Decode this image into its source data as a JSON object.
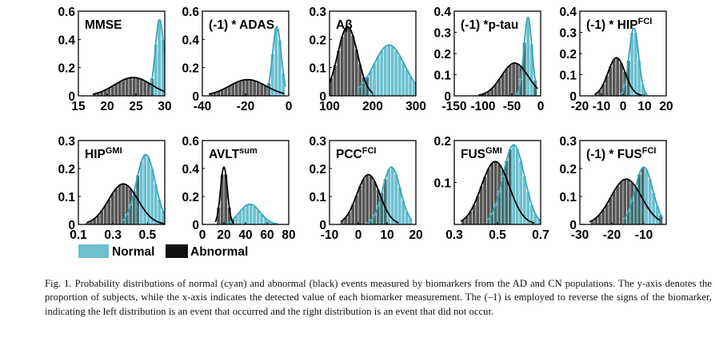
{
  "colors": {
    "normal": "#6cc0d0",
    "normal_dark": "#3aa6bb",
    "abnormal": "#555555",
    "overlap": "#3d6f73",
    "axis": "#000000"
  },
  "legend": {
    "normal": "Normal",
    "abnormal": "Abnormal"
  },
  "caption": "Fig. 1. Probability distributions of normal (cyan) and abnormal (black) events measured by biomarkers from the AD and CN populations. The y-axis denotes the proportion of subjects, while the x-axis indicates the detected value of each biomarker measurement. The (–1) is employed to reverse the signs of the biomarker, indicating the left distribution is an event that occurred and the right distribution is an event that did not occur.",
  "chart_data": [
    {
      "type": "area",
      "title": "MMSE",
      "xlim": [
        15,
        30
      ],
      "ylim": [
        0,
        0.6
      ],
      "xticks": [
        "15",
        "20",
        "25",
        "30"
      ],
      "xtick_values": [
        15,
        20,
        25,
        30
      ],
      "yticks": [
        "0",
        "0.2",
        "0.4",
        "0.6"
      ],
      "ytick_values": [
        0,
        0.2,
        0.4,
        0.6
      ],
      "series": [
        {
          "name": "Normal",
          "mean": 29.1,
          "sd": 0.75,
          "range": [
            27.5,
            30.0
          ],
          "peak": 0.54
        },
        {
          "name": "Abnormal",
          "mean": 24.5,
          "sd": 3.2,
          "range": [
            17.5,
            30.0
          ],
          "peak": 0.13
        }
      ]
    },
    {
      "type": "area",
      "title": "(-1) * ADAS",
      "xlim": [
        -40,
        0
      ],
      "ylim": [
        0,
        0.6
      ],
      "xticks": [
        "-40",
        "-20",
        "0"
      ],
      "xtick_values": [
        -40,
        -20,
        0
      ],
      "yticks": [
        "0",
        "0.2",
        "0.4",
        "0.6"
      ],
      "ytick_values": [
        0,
        0.2,
        0.4,
        0.6
      ],
      "series": [
        {
          "name": "Normal",
          "mean": -5.5,
          "sd": 2.0,
          "range": [
            -10.0,
            -1.5
          ],
          "peak": 0.49
        },
        {
          "name": "Abnormal",
          "mean": -19.0,
          "sd": 8.5,
          "range": [
            -37.0,
            -2.0
          ],
          "peak": 0.115
        }
      ]
    },
    {
      "type": "area",
      "title": "Aβ",
      "xlim": [
        100,
        300
      ],
      "ylim": [
        0,
        0.3
      ],
      "xticks": [
        "100",
        "200",
        "300"
      ],
      "xtick_values": [
        100,
        200,
        300
      ],
      "yticks": [
        "0",
        "0.1",
        "0.2",
        "0.3"
      ],
      "ytick_values": [
        0,
        0.1,
        0.2,
        0.3
      ],
      "series": [
        {
          "name": "Normal",
          "mean": 238,
          "sd": 36,
          "range": [
            170,
            300
          ],
          "peak": 0.18
        },
        {
          "name": "Abnormal",
          "mean": 142,
          "sd": 23,
          "range": [
            100,
            200
          ],
          "peak": 0.245
        }
      ]
    },
    {
      "type": "area",
      "title": "(-1) *p-tau",
      "xlim": [
        -150,
        0
      ],
      "ylim": [
        0,
        0.4
      ],
      "xticks": [
        "-150",
        "-100",
        "-50",
        "0"
      ],
      "xtick_values": [
        -150,
        -100,
        -50,
        0
      ],
      "yticks": [
        "0",
        "0.1",
        "0.2",
        "0.3",
        "0.4"
      ],
      "ytick_values": [
        0,
        0.1,
        0.2,
        0.3,
        0.4
      ],
      "series": [
        {
          "name": "Normal",
          "mean": -22,
          "sd": 7,
          "range": [
            -50,
            -8
          ],
          "peak": 0.37
        },
        {
          "name": "Abnormal",
          "mean": -45,
          "sd": 23,
          "range": [
            -108,
            -5
          ],
          "peak": 0.155
        }
      ]
    },
    {
      "type": "area",
      "title": "(-1) * HIP",
      "title_sup": "FCI",
      "xlim": [
        -20,
        20
      ],
      "ylim": [
        0,
        0.4
      ],
      "xticks": [
        "-20",
        "-10",
        "0",
        "10",
        "20"
      ],
      "xtick_values": [
        -20,
        -10,
        0,
        10,
        20
      ],
      "yticks": [
        "0",
        "0.1",
        "0.2",
        "0.3",
        "0.4"
      ],
      "ytick_values": [
        0,
        0.1,
        0.2,
        0.3,
        0.4
      ],
      "series": [
        {
          "name": "Normal",
          "mean": 5.0,
          "sd": 2.2,
          "range": [
            -1.0,
            11.0
          ],
          "peak": 0.32
        },
        {
          "name": "Abnormal",
          "mean": -3.0,
          "sd": 4.0,
          "range": [
            -13.0,
            9.0
          ],
          "peak": 0.18
        }
      ]
    },
    {
      "type": "area",
      "title": "HIP",
      "title_sup": "GMI",
      "xlim": [
        0.1,
        0.6
      ],
      "ylim": [
        0,
        0.3
      ],
      "xticks": [
        "0.1",
        "0.3",
        "0.5"
      ],
      "xtick_values": [
        0.1,
        0.3,
        0.5
      ],
      "yticks": [
        "0",
        "0.1",
        "0.2",
        "0.3"
      ],
      "ytick_values": [
        0,
        0.1,
        0.2,
        0.3
      ],
      "series": [
        {
          "name": "Normal",
          "mean": 0.49,
          "sd": 0.055,
          "range": [
            0.35,
            0.6
          ],
          "peak": 0.25
        },
        {
          "name": "Abnormal",
          "mean": 0.36,
          "sd": 0.085,
          "range": [
            0.15,
            0.6
          ],
          "peak": 0.145
        }
      ]
    },
    {
      "type": "area",
      "title": "AVLT",
      "title_sup": "sum",
      "xlim": [
        0,
        80
      ],
      "ylim": [
        0,
        0.6
      ],
      "xticks": [
        "0",
        "20",
        "40",
        "60",
        "80"
      ],
      "xtick_values": [
        0,
        20,
        40,
        60,
        80
      ],
      "yticks": [
        "0",
        "0.2",
        "0.4",
        "0.6"
      ],
      "ytick_values": [
        0,
        0.2,
        0.4,
        0.6
      ],
      "series": [
        {
          "name": "Normal",
          "mean": 44,
          "sd": 9.5,
          "range": [
            22,
            70
          ],
          "peak": 0.145
        },
        {
          "name": "Abnormal",
          "mean": 20,
          "sd": 3.2,
          "range": [
            12,
            29
          ],
          "peak": 0.41
        }
      ]
    },
    {
      "type": "area",
      "title": "PCC",
      "title_sup": "FCI",
      "xlim": [
        -10,
        20
      ],
      "ylim": [
        0,
        0.3
      ],
      "xticks": [
        "-10",
        "0",
        "10",
        "20"
      ],
      "xtick_values": [
        -10,
        0,
        10,
        20
      ],
      "yticks": [
        "0",
        "0.1",
        "0.2",
        "0.3"
      ],
      "ytick_values": [
        0,
        0.1,
        0.2,
        0.3
      ],
      "series": [
        {
          "name": "Normal",
          "mean": 11.5,
          "sd": 3.1,
          "range": [
            3,
            18.5
          ],
          "peak": 0.205
        },
        {
          "name": "Abnormal",
          "mean": 3.5,
          "sd": 4.0,
          "range": [
            -6,
            14
          ],
          "peak": 0.178
        }
      ]
    },
    {
      "type": "area",
      "title": "FUS",
      "title_sup": "GMI",
      "xlim": [
        0.3,
        0.7
      ],
      "ylim": [
        0,
        0.2
      ],
      "xticks": [
        "0.3",
        "0.5",
        "0.7"
      ],
      "xtick_values": [
        0.3,
        0.5,
        0.7
      ],
      "yticks": [
        "0.1",
        "0.2"
      ],
      "ytick_values": [
        0.1,
        0.2
      ],
      "series": [
        {
          "name": "Normal",
          "mean": 0.575,
          "sd": 0.05,
          "range": [
            0.45,
            0.7
          ],
          "peak": 0.19
        },
        {
          "name": "Abnormal",
          "mean": 0.49,
          "sd": 0.065,
          "range": [
            0.33,
            0.67
          ],
          "peak": 0.15
        }
      ]
    },
    {
      "type": "area",
      "title": "(-1) * FUS",
      "title_sup": "FCI",
      "xlim": [
        -30,
        -3
      ],
      "ylim": [
        0,
        0.3
      ],
      "xticks": [
        "-30",
        "-20",
        "-10"
      ],
      "xtick_values": [
        -30,
        -20,
        -10
      ],
      "yticks": [
        "0",
        "0.1",
        "0.2",
        "0.3"
      ],
      "ytick_values": [
        0,
        0.1,
        0.2,
        0.3
      ],
      "series": [
        {
          "name": "Normal",
          "mean": -10,
          "sd": 2.8,
          "range": [
            -16,
            -4
          ],
          "peak": 0.205
        },
        {
          "name": "Abnormal",
          "mean": -15.5,
          "sd": 4.8,
          "range": [
            -27,
            -5
          ],
          "peak": 0.162
        }
      ]
    }
  ]
}
